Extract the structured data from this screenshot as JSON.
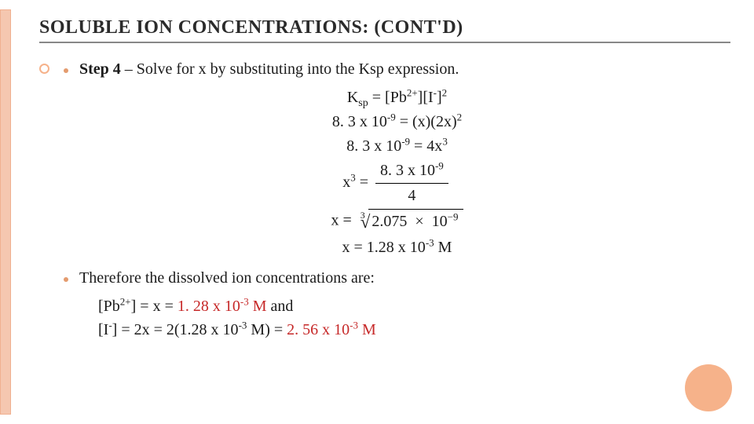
{
  "title_html": "S<span class='sc'>OLUBLE</span> I<span class='sc'>ON</span> C<span class='sc'>ONCENTRATIONS</span>: (<span class='sc'>CONT'D</span>)",
  "step": {
    "label": "Step 4",
    "desc": " – Solve for x by substituting into the Ksp expression."
  },
  "equations": {
    "e1": "K<sub>sp</sub> = [Pb<sup>2+</sup>][I<sup>-</sup>]<sup>2</sup>",
    "e2": "8. 3 x 10<sup>-9</sup> = (x)(2x)<sup>2</sup>",
    "e3": "8. 3 x 10<sup>-9</sup> = 4x<sup>3</sup>",
    "e4_lhs": "x<sup>3</sup> = ",
    "e4_num": "8. 3 x 10<sup>-9</sup>",
    "e4_den": "4",
    "e5_rad": "2.075 &nbsp;×&nbsp; 10<sup>−9</sup>",
    "e6": "x = 1.28 x 10<sup>-3</sup> M"
  },
  "therefore": "Therefore the dissolved ion concentrations are:",
  "ans1_pre": "[Pb<sup>2+</sup>] = x = ",
  "ans1_val": "1. 28 x 10<sup>-3</sup> M",
  "ans1_post": " and",
  "ans2_pre": "[I<sup>-</sup>] = 2x = 2(1.28 x 10<sup>-3</sup> M) = ",
  "ans2_val": "2. 56 x 10<sup>-3</sup> M",
  "colors": {
    "accent": "#f6b28a",
    "stripe": "#f5c7b0",
    "rule": "#888888",
    "red": "#c62828",
    "text": "#1b1b1b",
    "bg": "#ffffff"
  },
  "fontsizes": {
    "title": 24,
    "body": 20
  }
}
